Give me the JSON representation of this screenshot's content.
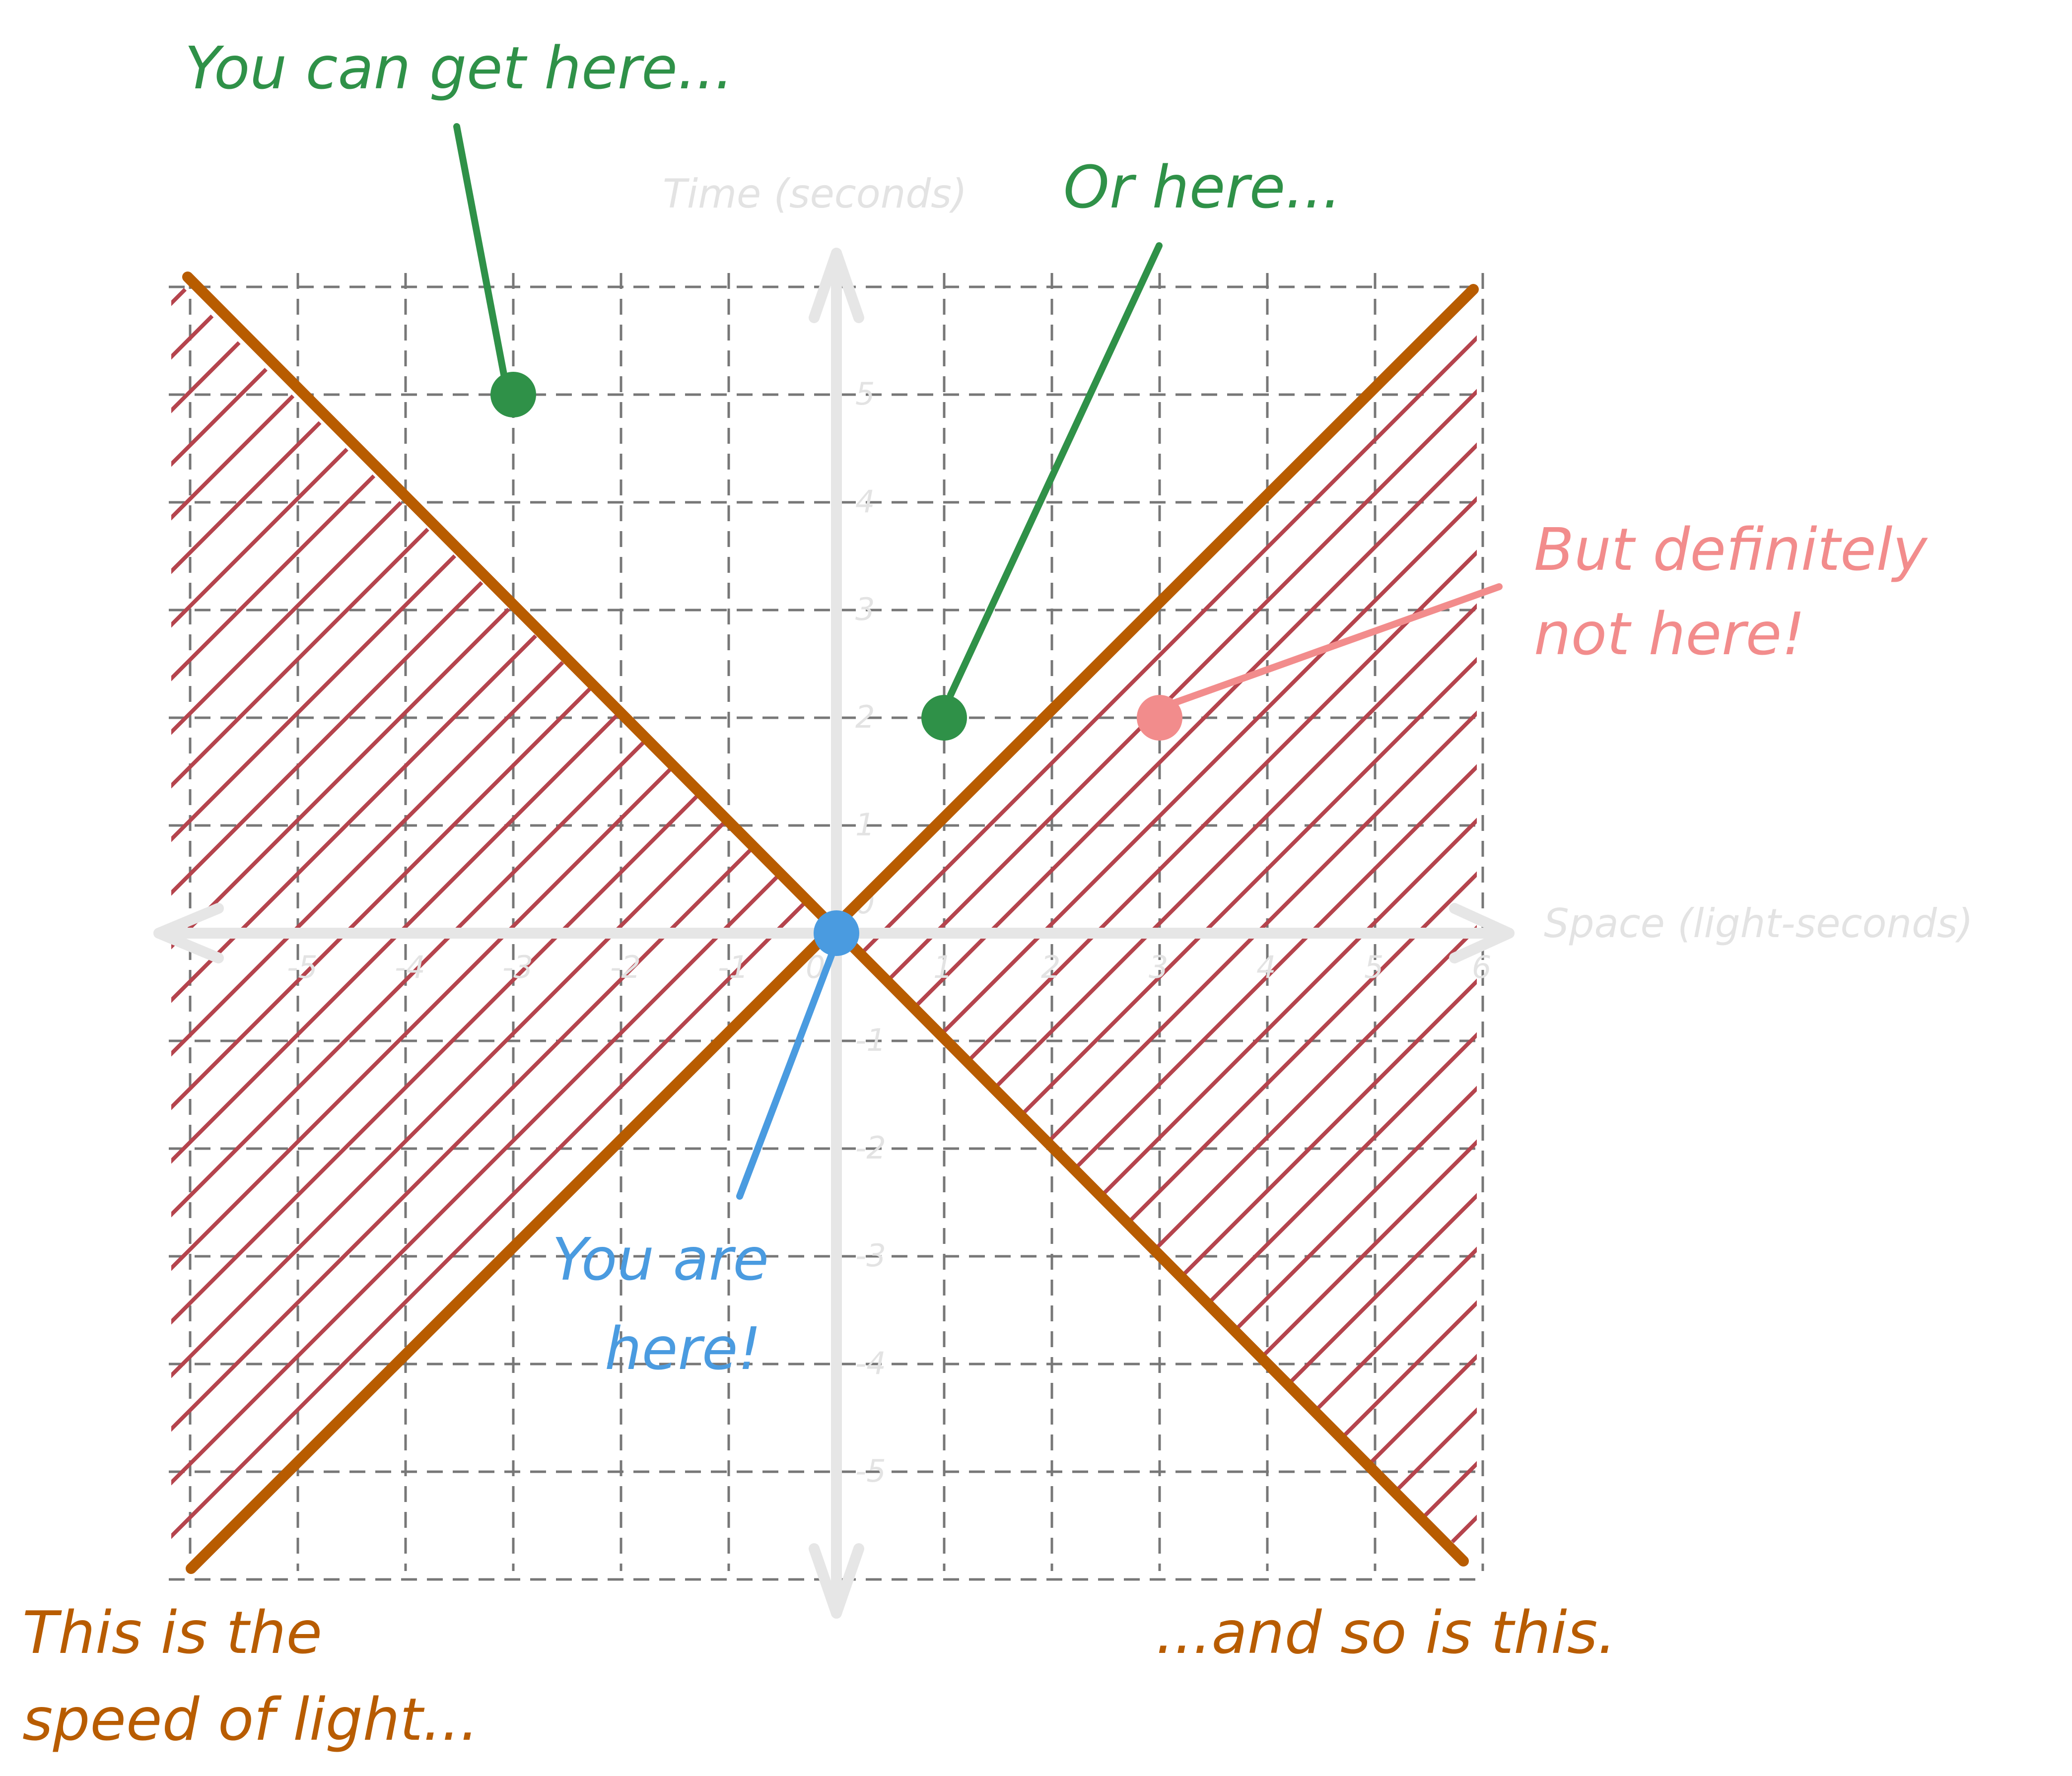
{
  "annotations": {
    "top_left": "You can get here...",
    "top_right": "Or here...",
    "right_line1": "But definitely",
    "right_line2": "not here!",
    "origin_line1": "You are",
    "origin_line2": "here!",
    "bottom_left_line1": "This is the",
    "bottom_left_line2": "speed of light...",
    "bottom_right": "...and so is this."
  },
  "axes": {
    "y_title": "Time (seconds)",
    "x_title": "Space (light-seconds)",
    "x_ticks": [
      "-5",
      "-4",
      "-3",
      "-2",
      "-1",
      "0",
      "1",
      "2",
      "3",
      "4",
      "5",
      "6"
    ],
    "x_tick_values": [
      -5,
      -4,
      -3,
      -2,
      -1,
      0,
      1,
      2,
      3,
      4,
      5,
      6
    ],
    "y_ticks": [
      "5",
      "4",
      "3",
      "2",
      "1",
      "0",
      "-1",
      "-2",
      "-3",
      "-4",
      "-5"
    ],
    "y_tick_values": [
      5,
      4,
      3,
      2,
      1,
      0,
      -1,
      -2,
      -3,
      -4,
      -5
    ]
  },
  "points": [
    {
      "name": "point-reachable-1",
      "x": -3,
      "t": 5,
      "color": "#2f9148"
    },
    {
      "name": "point-reachable-2",
      "x": 1,
      "t": 2,
      "color": "#2f9148"
    },
    {
      "name": "point-unreachable",
      "x": 3,
      "t": 2,
      "color": "#f28c8c"
    },
    {
      "name": "point-origin",
      "x": 0,
      "t": 0,
      "color": "#4a9be0"
    }
  ],
  "light_lines": [
    "t = x",
    "t = -x"
  ],
  "colors": {
    "light_line": "#b85c00",
    "hatch": "#b5444d",
    "reachable": "#2f9148",
    "unreachable": "#f28c8c",
    "origin": "#4a9be0",
    "axis": "#e6e6e6",
    "grid": "#777777"
  }
}
